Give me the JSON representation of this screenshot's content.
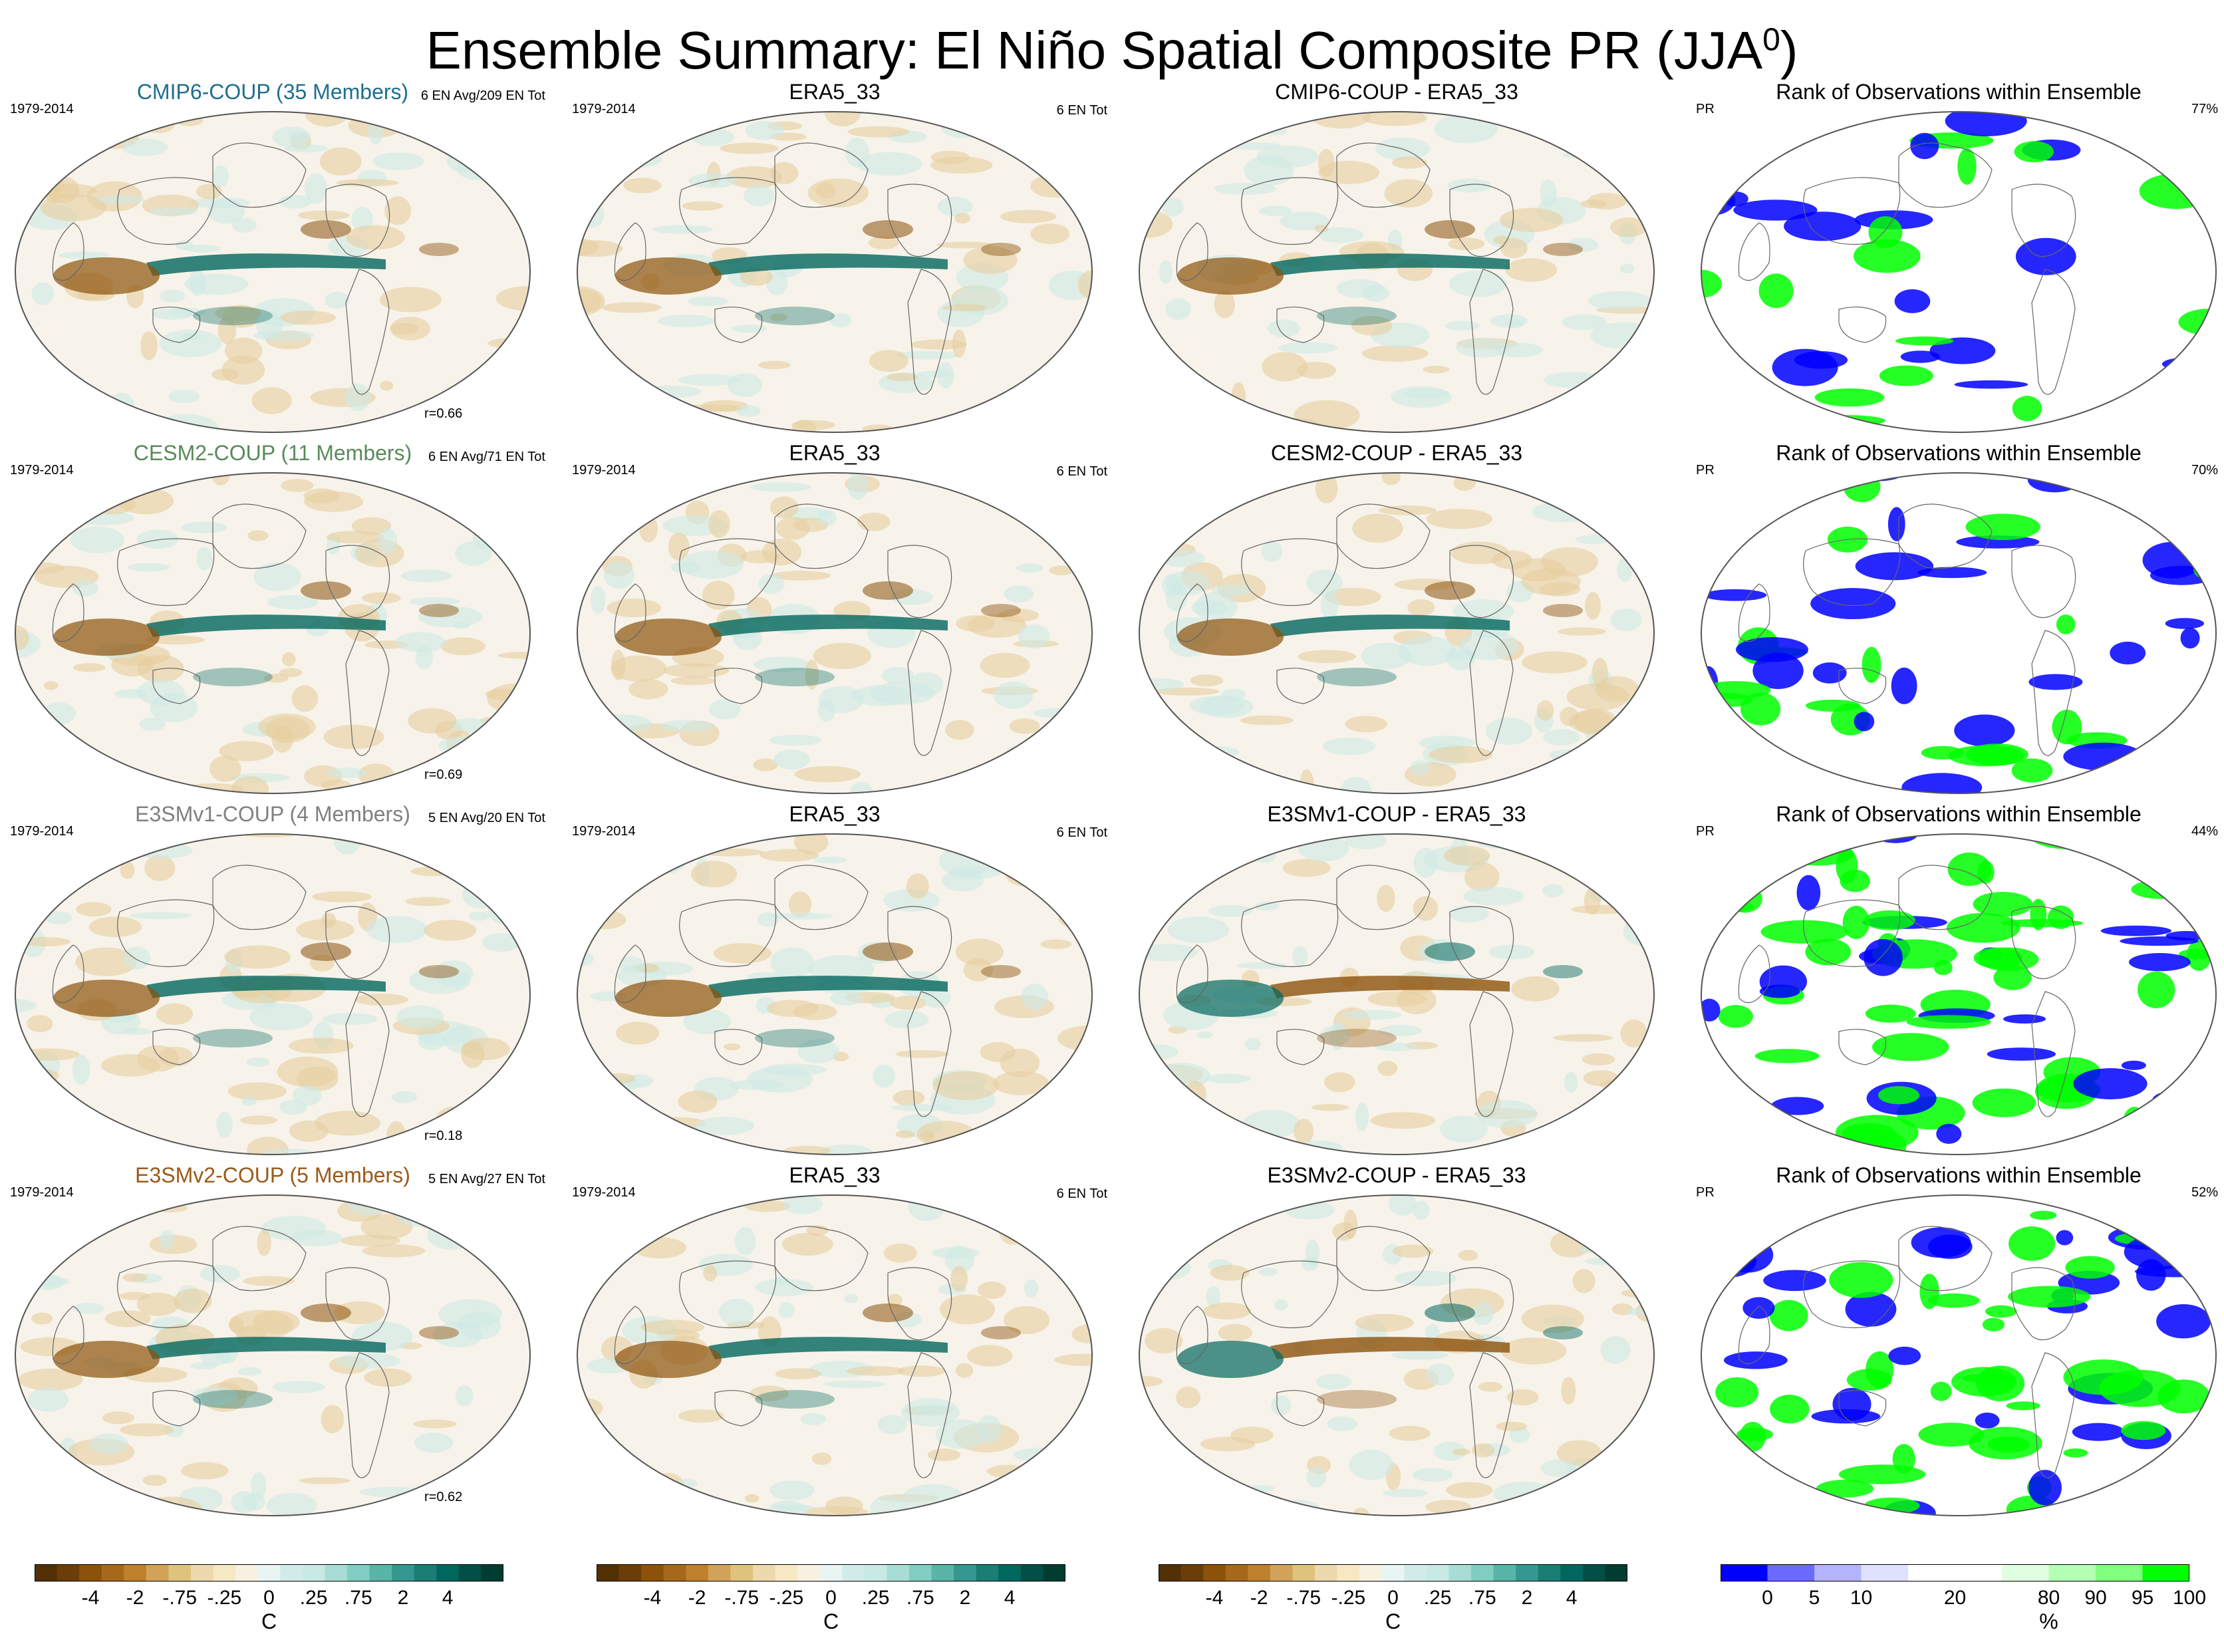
{
  "title": "Ensemble Summary: El Niño Spatial Composite PR (JJA",
  "title_sup": "0",
  "title_close": ")",
  "colors": {
    "cmip6": "#1f6f8b",
    "cesm2": "#5a8a5a",
    "e3smv1": "#808080",
    "e3smv2": "#9a5a1a",
    "pattern_brown": "#8c510a",
    "pattern_teal": "#01665e",
    "rank_blue": "#0000ff",
    "rank_green": "#00ff00"
  },
  "rows": [
    {
      "model": {
        "title": "CMIP6-COUP (35 Members)",
        "color_key": "cmip6",
        "period": "1979-2014",
        "count": "6 EN Avg/209 EN Tot",
        "r": "r=0.66"
      },
      "obs": {
        "title": "ERA5_33",
        "period": "1979-2014",
        "count": "6 EN Tot"
      },
      "diff": {
        "title": "CMIP6-COUP - ERA5_33"
      },
      "rank": {
        "title": "Rank of Observations within Ensemble",
        "var": "PR",
        "pct": "77%",
        "level": 0.35
      }
    },
    {
      "model": {
        "title": "CESM2-COUP (11 Members)",
        "color_key": "cesm2",
        "period": "1979-2014",
        "count": "6 EN Avg/71 EN Tot",
        "r": "r=0.69"
      },
      "obs": {
        "title": "ERA5_33",
        "period": "1979-2014",
        "count": "6 EN Tot"
      },
      "diff": {
        "title": "CESM2-COUP - ERA5_33"
      },
      "rank": {
        "title": "Rank of Observations within Ensemble",
        "var": "PR",
        "pct": "70%",
        "level": 0.6
      }
    },
    {
      "model": {
        "title": "E3SMv1-COUP (4 Members)",
        "color_key": "e3smv1",
        "period": "1979-2014",
        "count": "5 EN Avg/20 EN Tot",
        "r": "r=0.18"
      },
      "obs": {
        "title": "ERA5_33",
        "period": "1979-2014",
        "count": "6 EN Tot"
      },
      "diff": {
        "title": "E3SMv1-COUP - ERA5_33"
      },
      "rank": {
        "title": "Rank of Observations within Ensemble",
        "var": "PR",
        "pct": "44%",
        "level": 0.95
      }
    },
    {
      "model": {
        "title": "E3SMv2-COUP (5 Members)",
        "color_key": "e3smv2",
        "period": "1979-2014",
        "count": "5 EN Avg/27 EN Tot",
        "r": "r=0.62"
      },
      "obs": {
        "title": "ERA5_33",
        "period": "1979-2014",
        "count": "6 EN Tot"
      },
      "diff": {
        "title": "E3SMv2-COUP - ERA5_33"
      },
      "rank": {
        "title": "Rank of Observations within Ensemble",
        "var": "PR",
        "pct": "52%",
        "level": 0.85
      }
    }
  ],
  "chart_data": {
    "type": "heatmap",
    "colorbar_main": {
      "colors": [
        "#543005",
        "#6b3d09",
        "#8c510a",
        "#a6681c",
        "#bf812d",
        "#d2a25a",
        "#dfc27d",
        "#ecd9ad",
        "#f6e8c3",
        "#f7f1e1",
        "#e8f5f3",
        "#d1ece8",
        "#c7eae5",
        "#a7ddd4",
        "#80cdc1",
        "#5ab4a8",
        "#35978f",
        "#1b7d74",
        "#01665e",
        "#014f46",
        "#003c30"
      ],
      "ticks": [
        "-4",
        "-2",
        "-.75",
        "-.25",
        "0",
        ".25",
        ".75",
        "2",
        "4"
      ],
      "tick_pos": [
        2.5,
        4.5,
        6.5,
        8.5,
        10.5,
        12.5,
        14.5,
        16.5,
        18.5
      ],
      "unit": "C"
    },
    "colorbar_rank": {
      "colors": [
        "#0000ff",
        "#6a6aff",
        "#b3b3ff",
        "#e0e0ff",
        "#ffffff",
        "#ffffff",
        "#e0ffe0",
        "#b3ffb3",
        "#80ff80",
        "#00ff00"
      ],
      "ticks": [
        "0",
        "5",
        "10",
        "20",
        "80",
        "90",
        "95",
        "100"
      ],
      "tick_pos": [
        1,
        2,
        3,
        5,
        7,
        8,
        9,
        10
      ],
      "unit": "%"
    }
  }
}
